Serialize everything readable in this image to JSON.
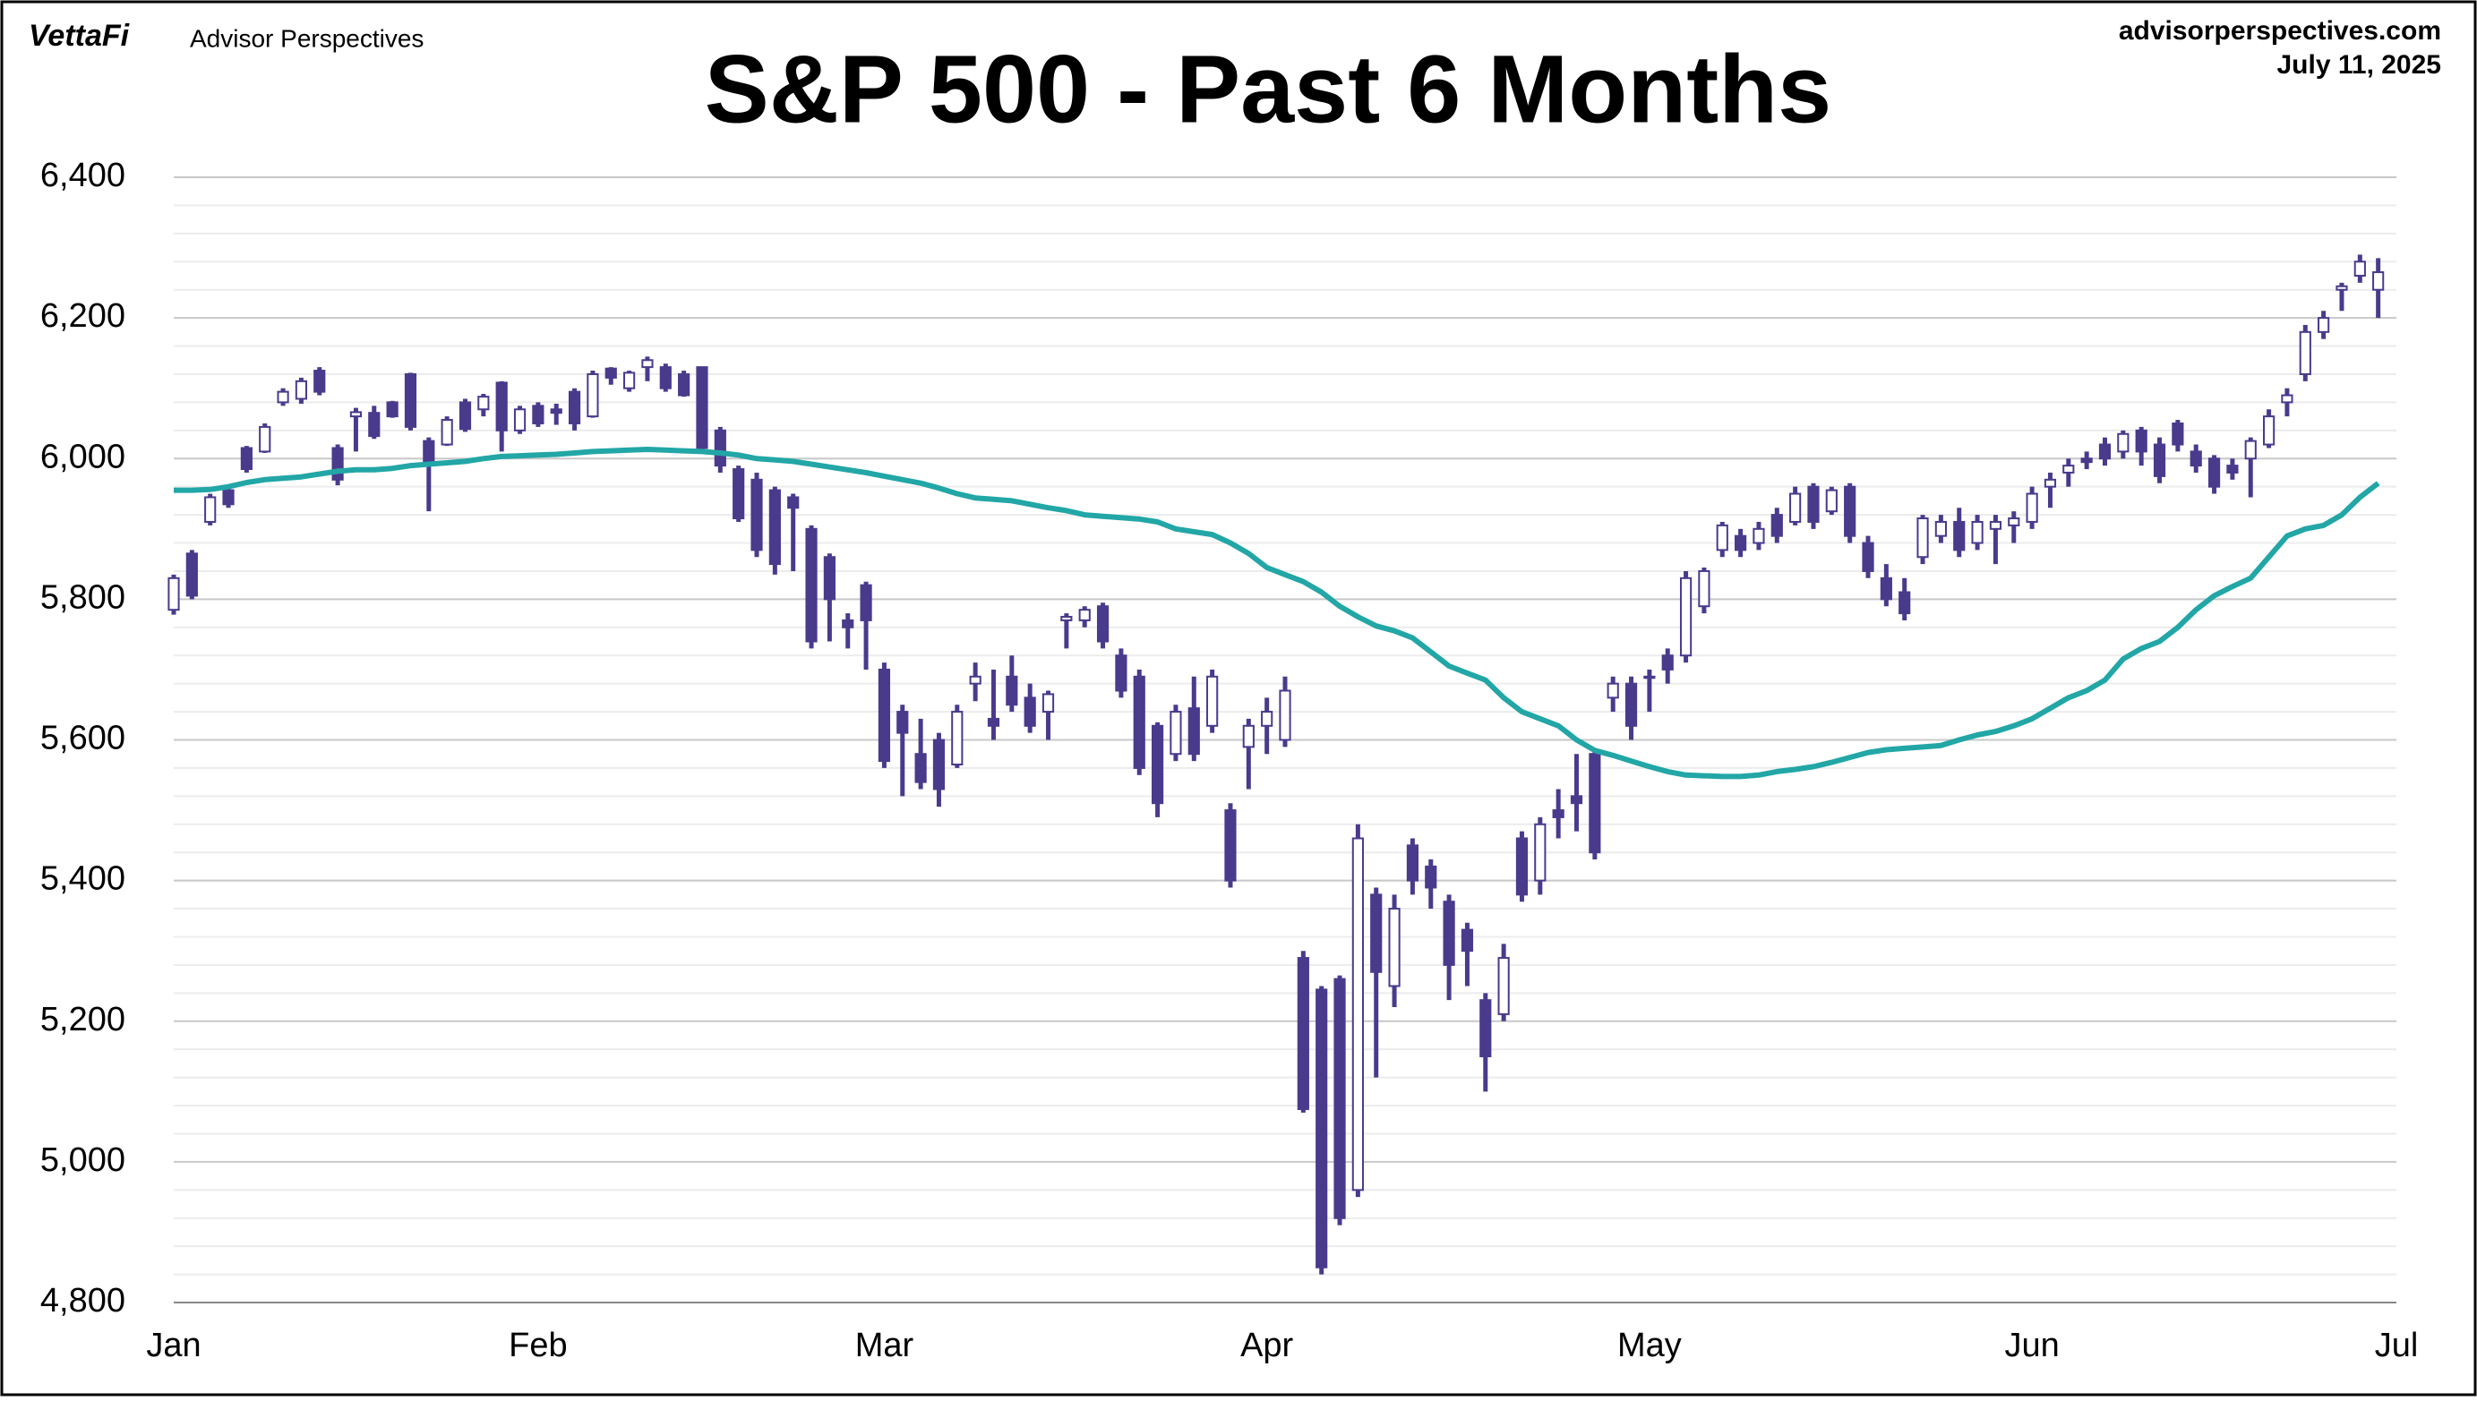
{
  "header": {
    "brand": "VettaFi",
    "brand_sub": "Advisor Perspectives",
    "site": "advisorperspectives.com",
    "date": "July 11, 2025"
  },
  "chart_data": {
    "type": "candlestick",
    "title": "S&P 500 - Past 6 Months",
    "categories": [
      "Jan",
      null,
      null,
      null,
      null,
      null,
      null,
      null,
      null,
      null,
      null,
      null,
      null,
      null,
      null,
      null,
      null,
      null,
      null,
      null,
      "Feb",
      null,
      null,
      null,
      null,
      null,
      null,
      null,
      null,
      null,
      null,
      null,
      null,
      null,
      null,
      null,
      null,
      null,
      null,
      "Mar",
      null,
      null,
      null,
      null,
      null,
      null,
      null,
      null,
      null,
      null,
      null,
      null,
      null,
      null,
      null,
      null,
      null,
      null,
      null,
      null,
      "Apr",
      null,
      null,
      null,
      null,
      null,
      null,
      null,
      null,
      null,
      null,
      null,
      null,
      null,
      null,
      null,
      null,
      null,
      null,
      null,
      null,
      "May",
      null,
      null,
      null,
      null,
      null,
      null,
      null,
      null,
      null,
      null,
      null,
      null,
      null,
      null,
      null,
      null,
      null,
      null,
      null,
      null,
      "Jun",
      null,
      null,
      null,
      null,
      null,
      null,
      null,
      null,
      null,
      null,
      null,
      null,
      null,
      null,
      null,
      null,
      null,
      null,
      null,
      "Jul"
    ],
    "open": [
      5785,
      5865,
      5910,
      5955,
      6015,
      6010,
      6080,
      6085,
      6125,
      6015,
      6060,
      6065,
      6080,
      6120,
      6025,
      6020,
      6080,
      6070,
      6108,
      6040,
      6075,
      6070,
      6095,
      6060,
      6128,
      6100,
      6130,
      6130,
      6120,
      6130,
      6040,
      5985,
      5970,
      5955,
      5945,
      5900,
      5860,
      5770,
      5820,
      5700,
      5640,
      5580,
      5600,
      5565,
      5680,
      5630,
      5690,
      5660,
      5640,
      5770,
      5770,
      5790,
      5720,
      5690,
      5620,
      5580,
      5645,
      5620,
      5500,
      5590,
      5620,
      5600,
      5290,
      5245,
      5260,
      4960,
      5380,
      5250,
      5450,
      5420,
      5370,
      5330,
      5230,
      5210,
      5460,
      5400,
      5500,
      5520,
      5580,
      5660,
      5680,
      5690,
      5720,
      5720,
      5790,
      5870,
      5890,
      5880,
      5920,
      5910,
      5960,
      5925,
      5960,
      5880,
      5830,
      5810,
      5860,
      5890,
      5910,
      5880,
      5900,
      5905,
      5910,
      5960,
      5980,
      6000,
      6020,
      6010,
      6040,
      6020,
      6050,
      6010,
      6000,
      5990,
      6000,
      6020,
      6080,
      6120,
      6180,
      6240,
      6260,
      6240,
      null
    ],
    "high": [
      5835,
      5870,
      5950,
      5960,
      6018,
      6050,
      6100,
      6115,
      6130,
      6020,
      6072,
      6075,
      6082,
      6122,
      6030,
      6060,
      6085,
      6092,
      6110,
      6075,
      6080,
      6078,
      6100,
      6125,
      6130,
      6125,
      6145,
      6135,
      6125,
      6130,
      6045,
      5990,
      5980,
      5960,
      5950,
      5905,
      5865,
      5780,
      5825,
      5710,
      5650,
      5630,
      5610,
      5650,
      5710,
      5700,
      5720,
      5680,
      5670,
      5780,
      5790,
      5795,
      5730,
      5700,
      5625,
      5650,
      5690,
      5700,
      5510,
      5630,
      5660,
      5690,
      5300,
      5250,
      5265,
      5480,
      5390,
      5380,
      5460,
      5430,
      5380,
      5340,
      5240,
      5310,
      5470,
      5490,
      5530,
      5580,
      5585,
      5690,
      5690,
      5700,
      5730,
      5840,
      5845,
      5910,
      5900,
      5910,
      5930,
      5960,
      5965,
      5960,
      5965,
      5890,
      5850,
      5830,
      5920,
      5920,
      5930,
      5920,
      5920,
      5925,
      5960,
      5980,
      6000,
      6010,
      6030,
      6040,
      6045,
      6030,
      6055,
      6020,
      6005,
      6000,
      6030,
      6070,
      6100,
      6190,
      6210,
      6250,
      6290,
      6285,
      null
    ],
    "low": [
      5778,
      5800,
      5905,
      5930,
      5980,
      6008,
      6075,
      6078,
      6090,
      5962,
      6010,
      6028,
      6058,
      6040,
      5925,
      6018,
      6038,
      6060,
      6010,
      6035,
      6045,
      6048,
      6040,
      6058,
      6105,
      6095,
      6110,
      6095,
      6088,
      6010,
      5980,
      5910,
      5860,
      5835,
      5840,
      5730,
      5740,
      5730,
      5700,
      5560,
      5520,
      5530,
      5505,
      5560,
      5655,
      5600,
      5640,
      5610,
      5600,
      5730,
      5760,
      5730,
      5660,
      5550,
      5490,
      5570,
      5570,
      5610,
      5390,
      5530,
      5580,
      5590,
      5070,
      4840,
      4910,
      4950,
      5120,
      5220,
      5380,
      5360,
      5230,
      5250,
      5100,
      5200,
      5370,
      5380,
      5460,
      5470,
      5430,
      5640,
      5600,
      5640,
      5680,
      5710,
      5780,
      5860,
      5860,
      5870,
      5880,
      5905,
      5900,
      5920,
      5880,
      5830,
      5790,
      5770,
      5850,
      5880,
      5860,
      5870,
      5850,
      5880,
      5900,
      5930,
      5960,
      5985,
      5990,
      6000,
      5990,
      5965,
      6010,
      5980,
      5950,
      5970,
      5945,
      6015,
      6060,
      6110,
      6170,
      6210,
      6250,
      6200,
      null
    ],
    "close": [
      5830,
      5805,
      5945,
      5935,
      5985,
      6045,
      6095,
      6110,
      6095,
      5970,
      6066,
      6032,
      6060,
      6045,
      5995,
      6055,
      6042,
      6088,
      6040,
      6070,
      6050,
      6065,
      6050,
      6120,
      6115,
      6122,
      6140,
      6100,
      6090,
      6015,
      5990,
      5915,
      5870,
      5850,
      5930,
      5740,
      5800,
      5760,
      5770,
      5570,
      5610,
      5540,
      5530,
      5640,
      5690,
      5620,
      5650,
      5620,
      5665,
      5775,
      5785,
      5740,
      5670,
      5560,
      5510,
      5640,
      5580,
      5690,
      5400,
      5620,
      5640,
      5670,
      5075,
      4850,
      4920,
      5460,
      5270,
      5360,
      5400,
      5390,
      5280,
      5300,
      5150,
      5290,
      5380,
      5480,
      5490,
      5510,
      5440,
      5680,
      5620,
      5690,
      5700,
      5830,
      5840,
      5905,
      5870,
      5900,
      5890,
      5950,
      5910,
      5955,
      5890,
      5840,
      5800,
      5780,
      5915,
      5910,
      5870,
      5910,
      5910,
      5915,
      5950,
      5970,
      5990,
      5995,
      6000,
      6035,
      6010,
      5975,
      6020,
      5990,
      5960,
      5980,
      6025,
      6060,
      6090,
      6180,
      6200,
      6245,
      6280,
      6265,
      null
    ],
    "moving_average": [
      5955,
      5955,
      5956,
      5960,
      5966,
      5970,
      5972,
      5974,
      5978,
      5982,
      5984,
      5984,
      5986,
      5990,
      5992,
      5994,
      5996,
      6000,
      6003,
      6004,
      6005,
      6006,
      6008,
      6010,
      6011,
      6012,
      6013,
      6012,
      6011,
      6010,
      6008,
      6005,
      6000,
      5998,
      5996,
      5992,
      5988,
      5984,
      5980,
      5975,
      5970,
      5965,
      5958,
      5950,
      5944,
      5942,
      5940,
      5935,
      5930,
      5926,
      5920,
      5918,
      5916,
      5914,
      5910,
      5900,
      5896,
      5892,
      5880,
      5865,
      5845,
      5835,
      5825,
      5810,
      5790,
      5775,
      5762,
      5755,
      5745,
      5725,
      5705,
      5695,
      5685,
      5660,
      5640,
      5630,
      5620,
      5600,
      5585,
      5578,
      5570,
      5562,
      5555,
      5550,
      5549,
      5548,
      5548,
      5550,
      5555,
      5558,
      5562,
      5568,
      5575,
      5582,
      5586,
      5588,
      5590,
      5592,
      5600,
      5607,
      5612,
      5620,
      5630,
      5645,
      5660,
      5670,
      5685,
      5715,
      5730,
      5740,
      5760,
      5785,
      5805,
      5818,
      5830,
      5860,
      5890,
      5900,
      5905,
      5920,
      5945,
      5965,
      null
    ],
    "up_color": "#ffffff",
    "down_color": "#4a3a8c",
    "ma_color": "#22a6a6",
    "ylim": [
      4800,
      6400
    ],
    "yticks": [
      {
        "value": 4800,
        "label": "4,800"
      },
      {
        "value": 5000,
        "label": "5,000"
      },
      {
        "value": 5200,
        "label": "5,200"
      },
      {
        "value": 5400,
        "label": "5,400"
      },
      {
        "value": 5600,
        "label": "5,600"
      },
      {
        "value": 5800,
        "label": "5,800"
      },
      {
        "value": 6000,
        "label": "6,000"
      },
      {
        "value": 6200,
        "label": "6,200"
      },
      {
        "value": 6400,
        "label": "6,400"
      }
    ],
    "minor_yticks": [
      4840,
      4880,
      4920,
      4960,
      5040,
      5080,
      5120,
      5160,
      5240,
      5280,
      5320,
      5360,
      5440,
      5480,
      5520,
      5560,
      5640,
      5680,
      5720,
      5760,
      5840,
      5880,
      5920,
      5960,
      6040,
      6080,
      6120,
      6160,
      6240,
      6280,
      6320,
      6360
    ],
    "grid": true
  }
}
